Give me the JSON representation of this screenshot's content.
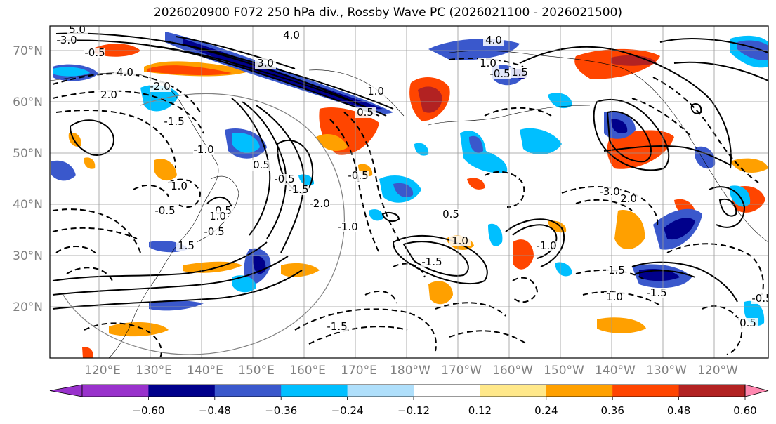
{
  "title": "2026020900 F072 250 hPa div., Rossby Wave PC (2026021100 - 2026021500)",
  "lat_labels": [
    "70°N",
    "60°N",
    "50°N",
    "40°N",
    "30°N",
    "20°N"
  ],
  "lon_labels": [
    "120°E",
    "130°E",
    "140°E",
    "150°E",
    "160°E",
    "170°E",
    "180°W",
    "170°W",
    "160°W",
    "150°W",
    "140°W",
    "130°W",
    "120°W"
  ],
  "colorbar": {
    "tick_labels": [
      "−0.60",
      "−0.48",
      "−0.36",
      "−0.24",
      "−0.12",
      "0.12",
      "0.24",
      "0.36",
      "0.48",
      "0.60"
    ],
    "colors": [
      "#9932cc",
      "#00008b",
      "#3a58cc",
      "#00bfff",
      "#afdffb",
      "#ffffff",
      "#ffe88a",
      "#ffa000",
      "#ff4500",
      "#b22222",
      "#ff88b0"
    ]
  },
  "contour_labels": [
    "5.0",
    "-3.0",
    "-0.5",
    "4.0",
    "2.0",
    "-2.0",
    "-1.5",
    "-1.0",
    "1.0",
    "0.5",
    "1.0",
    "-0.5",
    "1.5",
    "-0.5",
    "0.5",
    "-0.5",
    "1.0",
    "0.5",
    "4.0",
    "3.0",
    "-1.5",
    "-0.5",
    "-1.0",
    "0.5",
    "1.0",
    "4.0",
    "-1.5",
    "-2.0",
    "-3.0",
    "2.0",
    "1.5",
    "1.0",
    "-0.5",
    "-1.0",
    "1.5",
    "-1.5",
    "1.0",
    "-0.5",
    "0.5",
    "-1.5"
  ],
  "colors": {
    "contour": "#000000",
    "grid": "#999999",
    "tick_text": "#808080"
  }
}
